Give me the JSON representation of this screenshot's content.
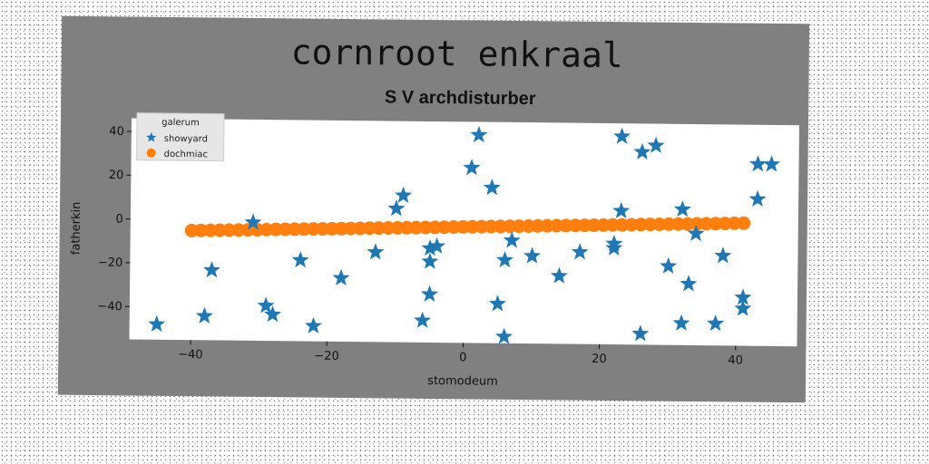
{
  "chart_data": {
    "type": "scatter",
    "title": "cornroot enkraal",
    "subtitle": "S V archdisturber",
    "xlabel": "stomodeum",
    "ylabel": "fatherkin",
    "xlim": [
      -49,
      49
    ],
    "ylim": [
      -55,
      46
    ],
    "xticks": [
      -40,
      -20,
      0,
      20,
      40
    ],
    "yticks": [
      -40,
      -20,
      0,
      20,
      40
    ],
    "xtick_labels": [
      "−40",
      "−20",
      "0",
      "20",
      "40"
    ],
    "ytick_labels": [
      "−40",
      "−20",
      "0",
      "20",
      "40"
    ],
    "grid": false,
    "legend": {
      "title": "galerum",
      "placement": "top-left"
    },
    "series": [
      {
        "name": "showyard",
        "marker": "star",
        "color": "#1f77b4",
        "points": [
          [
            -45,
            -48
          ],
          [
            -38,
            -44
          ],
          [
            -37,
            -23
          ],
          [
            -29,
            -39
          ],
          [
            -28,
            -43
          ],
          [
            -24,
            -18
          ],
          [
            -22,
            -48
          ],
          [
            -18,
            -26
          ],
          [
            -13,
            -14
          ],
          [
            -10,
            6
          ],
          [
            -9,
            12
          ],
          [
            -6,
            -45
          ],
          [
            -5,
            -12
          ],
          [
            -5,
            -18
          ],
          [
            -5,
            -33
          ],
          [
            -4,
            -11
          ],
          [
            1,
            25
          ],
          [
            2,
            40
          ],
          [
            4,
            16
          ],
          [
            5,
            -37
          ],
          [
            6,
            -17
          ],
          [
            6,
            -52
          ],
          [
            7,
            -8
          ],
          [
            10,
            -15
          ],
          [
            14,
            -24
          ],
          [
            17,
            -13
          ],
          [
            22,
            -9
          ],
          [
            22,
            -11
          ],
          [
            23,
            40
          ],
          [
            23,
            6
          ],
          [
            26,
            -50
          ],
          [
            26,
            33
          ],
          [
            28,
            36
          ],
          [
            30,
            -19
          ],
          [
            32,
            7
          ],
          [
            32,
            -45
          ],
          [
            33,
            -27
          ],
          [
            34,
            -4
          ],
          [
            37,
            -45
          ],
          [
            38,
            -14
          ],
          [
            41,
            -33
          ],
          [
            41,
            -38
          ],
          [
            43,
            12
          ],
          [
            43,
            28
          ],
          [
            45,
            28
          ],
          [
            -31,
            -1
          ]
        ]
      },
      {
        "name": "dochmiac",
        "marker": "circle",
        "color": "#ff7f0e",
        "x_range": [
          -40,
          41
        ],
        "y_range": [
          -5,
          1
        ],
        "count": 60
      }
    ]
  }
}
